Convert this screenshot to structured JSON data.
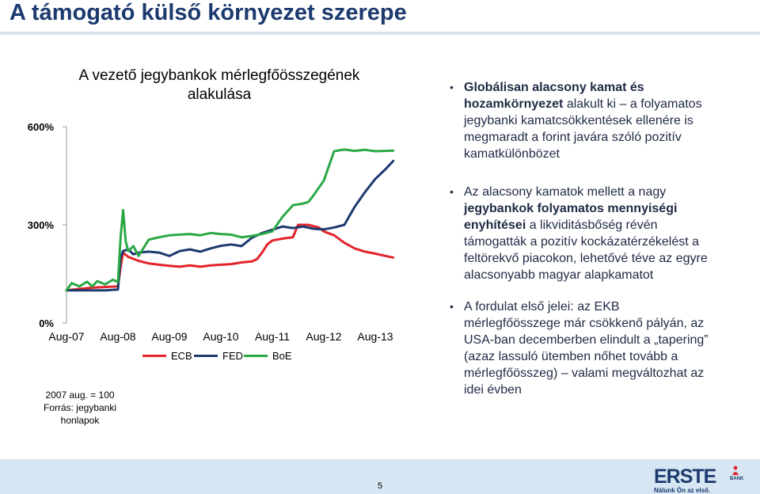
{
  "slide": {
    "title": "A támogató külső környezet szerepe",
    "page_number": "5"
  },
  "chart_data": {
    "type": "line",
    "title_line1": "A vezető jegybankok mérlegfőösszegének",
    "title_line2": "alakulása",
    "x_tick_labels": [
      "Aug-07",
      "Aug-08",
      "Aug-09",
      "Aug-10",
      "Aug-11",
      "Aug-12",
      "Aug-13"
    ],
    "y_tick_labels": [
      "600%",
      "300%",
      "0%"
    ],
    "ylim": [
      0,
      600
    ],
    "xlim": [
      0,
      6.4
    ],
    "legend_position": "bottom",
    "series": [
      {
        "name": "ECB",
        "color": "#e3232b",
        "x": [
          0,
          0.25,
          0.5,
          0.75,
          1.0,
          1.05,
          1.1,
          1.2,
          1.4,
          1.6,
          1.8,
          2.0,
          2.2,
          2.4,
          2.6,
          2.8,
          3.0,
          3.2,
          3.4,
          3.6,
          3.7,
          3.8,
          3.9,
          4.0,
          4.2,
          4.4,
          4.5,
          4.7,
          4.9,
          5.0,
          5.2,
          5.4,
          5.6,
          5.8,
          6.0,
          6.2,
          6.35
        ],
        "y": [
          100,
          104,
          108,
          110,
          112,
          170,
          215,
          202,
          190,
          182,
          178,
          175,
          172,
          176,
          172,
          176,
          178,
          180,
          185,
          188,
          195,
          215,
          240,
          252,
          258,
          262,
          300,
          300,
          292,
          280,
          268,
          245,
          228,
          218,
          212,
          205,
          200
        ]
      },
      {
        "name": "FED",
        "color": "#1c3a6e",
        "x": [
          0,
          0.25,
          0.5,
          0.75,
          1.0,
          1.05,
          1.1,
          1.2,
          1.3,
          1.4,
          1.6,
          1.8,
          2.0,
          2.2,
          2.4,
          2.6,
          2.8,
          3.0,
          3.2,
          3.4,
          3.6,
          3.8,
          4.0,
          4.2,
          4.4,
          4.6,
          4.8,
          5.0,
          5.2,
          5.4,
          5.6,
          5.8,
          6.0,
          6.2,
          6.35
        ],
        "y": [
          100,
          100,
          100,
          100,
          102,
          200,
          220,
          225,
          210,
          215,
          218,
          215,
          205,
          220,
          225,
          218,
          228,
          236,
          240,
          235,
          260,
          275,
          285,
          295,
          290,
          295,
          288,
          286,
          292,
          300,
          355,
          400,
          440,
          470,
          495
        ]
      },
      {
        "name": "BoE",
        "color": "#2aa845",
        "x": [
          0,
          0.1,
          0.25,
          0.4,
          0.5,
          0.6,
          0.75,
          0.9,
          1.0,
          1.05,
          1.1,
          1.15,
          1.2,
          1.3,
          1.4,
          1.5,
          1.6,
          1.8,
          2.0,
          2.2,
          2.4,
          2.6,
          2.8,
          3.0,
          3.2,
          3.4,
          3.6,
          3.8,
          4.0,
          4.2,
          4.4,
          4.6,
          4.7,
          4.8,
          5.0,
          5.2,
          5.4,
          5.6,
          5.8,
          6.0,
          6.2,
          6.35
        ],
        "y": [
          100,
          122,
          112,
          126,
          112,
          128,
          118,
          132,
          125,
          260,
          345,
          250,
          220,
          235,
          205,
          230,
          255,
          262,
          268,
          270,
          272,
          268,
          275,
          272,
          270,
          262,
          266,
          272,
          280,
          325,
          360,
          365,
          370,
          390,
          435,
          525,
          530,
          526,
          529,
          525,
          526,
          527
        ]
      }
    ]
  },
  "chart_note": {
    "line1": "2007 aug. = 100",
    "line2": "Forrás: jegybanki",
    "line3": "honlapok"
  },
  "bullets": [
    {
      "bold": "Globálisan alacsony kamat és hozamkörnyezet",
      "text": " alakult ki – a folyamatos jegybanki kamatcsökkentések ellenére is megmaradt a forint javára szóló pozitív kamatkülönbözet"
    },
    {
      "pre": "Az alacsony kamatok mellett a nagy ",
      "bold": "jegybankok folyamatos mennyiségi enyhítései",
      "text": " a likviditásbőség révén támogatták a pozitív kockázatérzékelést a feltörekvő piacokon, lehetővé téve az egyre alacsonyabb magyar alapkamatot"
    },
    {
      "text": "A fordulat első jelei: az EKB mérlegfőösszege már csökkenő pályán, az USA-ban decemberben elindult a „tapering” (azaz lassuló ütemben nőhet tovább a mérlegfőösszeg) – valami megváltozhat az idei évben"
    }
  ],
  "logo": {
    "brand": "ERSTE",
    "bank": "BANK",
    "slogan": "Nálunk Ön az első."
  },
  "colors": {
    "title": "#1c3a6e",
    "footer": "#d6e6f3",
    "ecb": "#e3232b",
    "fed": "#1c3a6e",
    "boe": "#2aa845"
  }
}
